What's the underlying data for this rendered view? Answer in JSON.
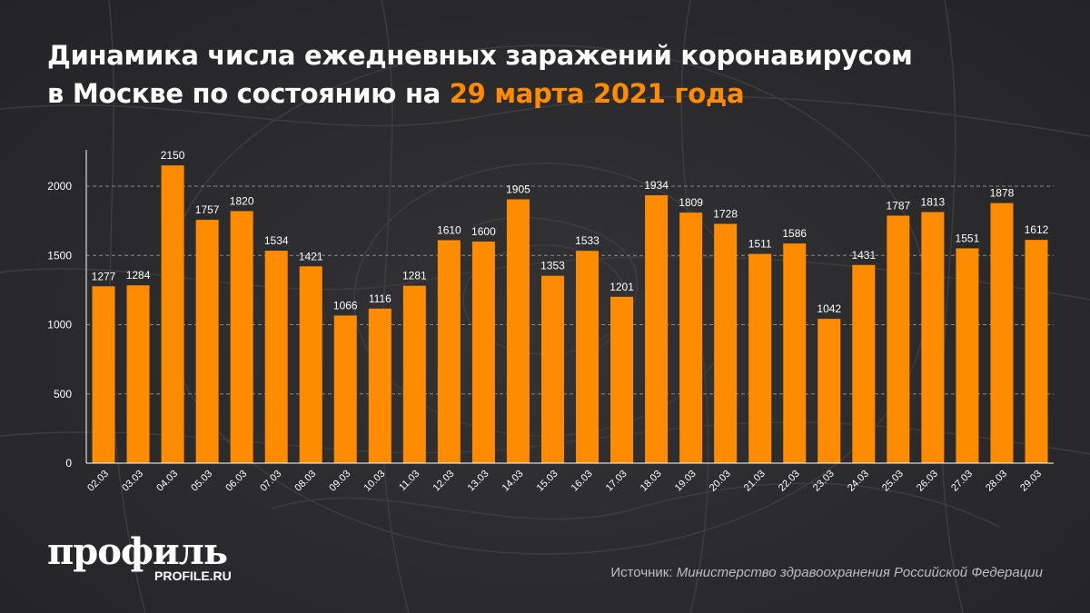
{
  "title": {
    "line1": "Динамика числа ежедневных заражений коронавирусом",
    "line2_prefix": "в Москве по состоянию на ",
    "line2_accent": "29 марта 2021 года"
  },
  "colors": {
    "background": "#2b2b2d",
    "bar": "#ff8c00",
    "accent": "#ff8c00",
    "text": "#ffffff",
    "gridline": "#8a8a8a"
  },
  "chart_data": {
    "type": "bar",
    "categories": [
      "02.03",
      "03.03",
      "04.03",
      "05.03",
      "06.03",
      "07.03",
      "08.03",
      "09.03",
      "10.03",
      "11.03",
      "12.03",
      "13.03",
      "14.03",
      "15.03",
      "16.03",
      "17.03",
      "18.03",
      "19.03",
      "20.03",
      "21.03",
      "22.03",
      "23.03",
      "24.03",
      "25.03",
      "26.03",
      "27.03",
      "28.03",
      "29.03"
    ],
    "values": [
      1277,
      1284,
      2150,
      1757,
      1820,
      1534,
      1421,
      1066,
      1116,
      1281,
      1610,
      1600,
      1905,
      1353,
      1533,
      1201,
      1934,
      1809,
      1728,
      1511,
      1586,
      1042,
      1431,
      1787,
      1813,
      1551,
      1878,
      1612
    ],
    "yticks": [
      0,
      500,
      1000,
      1500,
      2000
    ],
    "ylim": [
      0,
      2200
    ],
    "grid": "horizontal-dashed",
    "data_labels": true,
    "legend": "none"
  },
  "brand": {
    "name": "профиль",
    "site": "PROFILE.RU"
  },
  "source": {
    "label": "Источник: ",
    "value": "Министерство здравоохранения Российской Федерации"
  }
}
